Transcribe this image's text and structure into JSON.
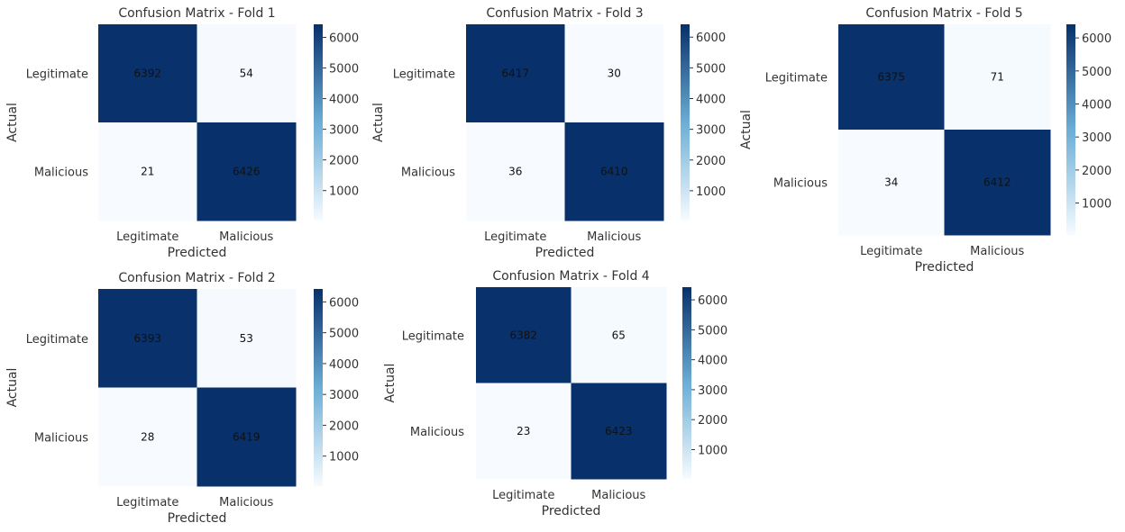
{
  "figure": {
    "colormap": {
      "name": "Blues",
      "low": "#f7fbff",
      "high": "#08306b"
    }
  },
  "chart_data": [
    {
      "type": "heatmap",
      "title": "Confusion Matrix - Fold 1",
      "xlabel": "Predicted",
      "ylabel": "Actual",
      "x_categories": [
        "Legitimate",
        "Malicious"
      ],
      "y_categories": [
        "Legitimate",
        "Malicious"
      ],
      "values": [
        [
          6392,
          54
        ],
        [
          21,
          6426
        ]
      ],
      "colorbar": {
        "ticks": [
          1000,
          2000,
          3000,
          4000,
          5000,
          6000
        ],
        "range": [
          21,
          6426
        ]
      }
    },
    {
      "type": "heatmap",
      "title": "Confusion Matrix - Fold 3",
      "xlabel": "Predicted",
      "ylabel": "Actual",
      "x_categories": [
        "Legitimate",
        "Malicious"
      ],
      "y_categories": [
        "Legitimate",
        "Malicious"
      ],
      "values": [
        [
          6417,
          30
        ],
        [
          36,
          6410
        ]
      ],
      "colorbar": {
        "ticks": [
          1000,
          2000,
          3000,
          4000,
          5000,
          6000
        ],
        "range": [
          30,
          6417
        ]
      }
    },
    {
      "type": "heatmap",
      "title": "Confusion Matrix - Fold 5",
      "xlabel": "Predicted",
      "ylabel": "Actual",
      "x_categories": [
        "Legitimate",
        "Malicious"
      ],
      "y_categories": [
        "Legitimate",
        "Malicious"
      ],
      "values": [
        [
          6375,
          71
        ],
        [
          34,
          6412
        ]
      ],
      "colorbar": {
        "ticks": [
          1000,
          2000,
          3000,
          4000,
          5000,
          6000
        ],
        "range": [
          34,
          6412
        ]
      }
    },
    {
      "type": "heatmap",
      "title": "Confusion Matrix - Fold 2",
      "xlabel": "Predicted",
      "ylabel": "Actual",
      "x_categories": [
        "Legitimate",
        "Malicious"
      ],
      "y_categories": [
        "Legitimate",
        "Malicious"
      ],
      "values": [
        [
          6393,
          53
        ],
        [
          28,
          6419
        ]
      ],
      "colorbar": {
        "ticks": [
          1000,
          2000,
          3000,
          4000,
          5000,
          6000
        ],
        "range": [
          28,
          6419
        ]
      }
    },
    {
      "type": "heatmap",
      "title": "Confusion Matrix - Fold 4",
      "xlabel": "Predicted",
      "ylabel": "Actual",
      "x_categories": [
        "Legitimate",
        "Malicious"
      ],
      "y_categories": [
        "Legitimate",
        "Malicious"
      ],
      "values": [
        [
          6382,
          65
        ],
        [
          23,
          6423
        ]
      ],
      "colorbar": {
        "ticks": [
          1000,
          2000,
          3000,
          4000,
          5000,
          6000
        ],
        "range": [
          23,
          6423
        ]
      }
    }
  ]
}
